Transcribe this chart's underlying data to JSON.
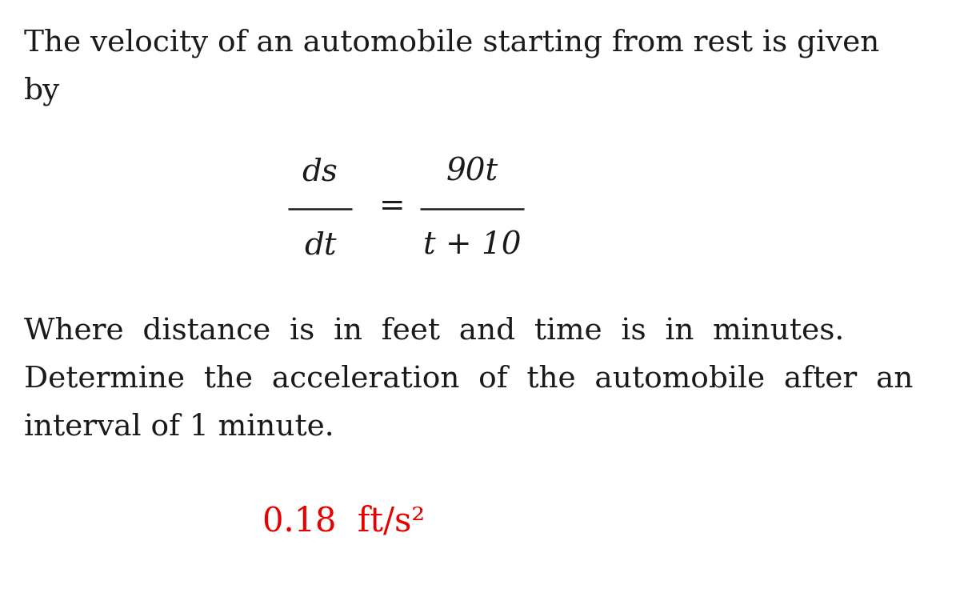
{
  "background_color": "#ffffff",
  "line1_text": "The velocity of an automobile starting from rest is given",
  "line2_text": "by",
  "para_line1": "Where  distance  is  in  feet  and  time  is  in  minutes.",
  "para_line2": "Determine  the  acceleration  of  the  automobile  after  an",
  "para_line3": "interval of 1 minute.",
  "answer": "0.18  ft/s²",
  "answer_color": "#e60000",
  "main_text_color": "#1a1a1a",
  "font_size_main": 27,
  "font_size_formula": 28,
  "font_size_answer": 30
}
